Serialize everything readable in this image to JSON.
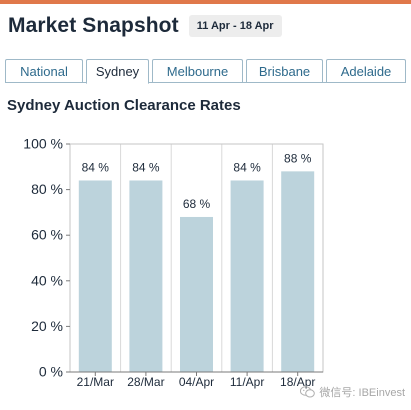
{
  "header": {
    "title": "Market Snapshot",
    "date_range": "11 Apr - 18 Apr"
  },
  "tabs": [
    {
      "label": "National",
      "active": false
    },
    {
      "label": "Sydney",
      "active": true
    },
    {
      "label": "Melbourne",
      "active": false
    },
    {
      "label": "Brisbane",
      "active": false
    },
    {
      "label": "Adelaide",
      "active": false
    }
  ],
  "colors": {
    "accent_rule": "#e0784a",
    "bar_fill": "#bcd3dc",
    "tab_border": "#9fb9c8",
    "tab_text": "#2e6a8c"
  },
  "chart_data": {
    "type": "bar",
    "title": "Sydney Auction Clearance Rates",
    "categories": [
      "21/Mar",
      "28/Mar",
      "04/Apr",
      "11/Apr",
      "18/Apr"
    ],
    "values": [
      84,
      84,
      68,
      84,
      88
    ],
    "value_labels": [
      "84 %",
      "84 %",
      "68 %",
      "84 %",
      "88 %"
    ],
    "ylim": [
      0,
      100
    ],
    "yticks": [
      0,
      20,
      40,
      60,
      80,
      100
    ],
    "ytick_labels": [
      "0 %",
      "20 %",
      "40 %",
      "60 %",
      "80 %",
      "100 %"
    ],
    "xlabel": "",
    "ylabel": "",
    "grid": "vertical",
    "legend": "none"
  },
  "watermark": {
    "text": "微信号: IBEinvest",
    "icon": "wechat-icon"
  }
}
